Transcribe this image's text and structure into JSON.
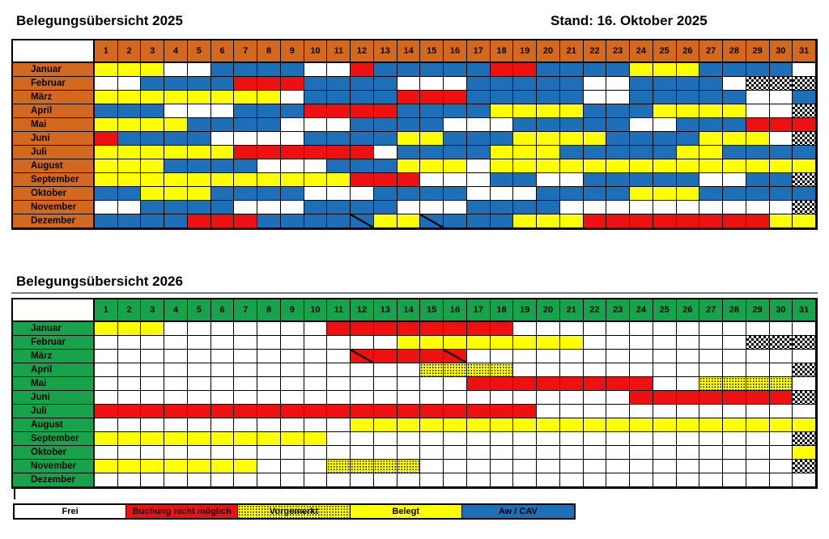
{
  "header": {
    "title_2025": "Belegungsübersicht 2025",
    "stand": "Stand: 16. Oktober 2025",
    "title_2026": "Belegungsübersicht 2026"
  },
  "legend": {
    "items": [
      {
        "label": "Frei",
        "state": "F",
        "color": "#ffffff"
      },
      {
        "label": "Buchung nicht möglich",
        "state": "N",
        "color": "#ee1111"
      },
      {
        "label": "Vorgemerkt",
        "state": "V",
        "color": "#ffff00",
        "pattern": "black-dots"
      },
      {
        "label": "Belegt",
        "state": "B",
        "color": "#ffff00"
      },
      {
        "label": "Aw / CAV",
        "state": "A",
        "color": "#1d6fb8"
      }
    ]
  },
  "chart_data": {
    "type": "heatmap",
    "day_labels": [
      1,
      2,
      3,
      4,
      5,
      6,
      7,
      8,
      9,
      10,
      11,
      12,
      13,
      14,
      15,
      16,
      17,
      18,
      19,
      20,
      21,
      22,
      23,
      24,
      25,
      26,
      27,
      28,
      29,
      30,
      31
    ],
    "state_codes": {
      "F": "Frei (weiß)",
      "N": "Buchung nicht möglich (rot)",
      "V": "Vorgemerkt (gelb gepunktet)",
      "B": "Belegt (gelb)",
      "A": "Aw / CAV (blau)",
      "X": "schraffiert (kein Kalendertag)"
    },
    "diagonal_note": "Zellen mit schwarzer Diagonale von links unten nach rechts oben",
    "years": [
      {
        "year": "2025",
        "header_color": "#d2691e",
        "months": [
          {
            "name": "Januar",
            "states": "BBBFFAAAAFFNAAAAANNAAAABBBAAAAF",
            "diagonal_days": []
          },
          {
            "name": "Februar",
            "states": "FFAAAANNNAAAAFFFAAAAAFFAAAAFXXX",
            "diagonal_days": []
          },
          {
            "name": "März",
            "states": "BBBBBBBBFAAAANNNAAAAAFFAAAAAFFA",
            "diagonal_days": []
          },
          {
            "name": "April",
            "states": "AAAFFFAAANNNNAAAABBBBAAABBBBFFX",
            "diagonal_days": []
          },
          {
            "name": "Mai",
            "states": "BBBBAAAAFFFAAAAFFFAAAAAFFAAANNN",
            "diagonal_days": []
          },
          {
            "name": "Juni",
            "states": "NAAAAFFFFAAAABBAAABBBBAAAABBBFX",
            "diagonal_days": []
          },
          {
            "name": "Juli",
            "states": "BBBBBBNNNNNNFAAAABBBAAAAABBAAAA",
            "diagonal_days": []
          },
          {
            "name": "August",
            "states": "BBBAAAAFFFAAABBBFBBBBBBBBBBBBBB",
            "diagonal_days": []
          },
          {
            "name": "September",
            "states": "BBBBBBBBBBBNNNFFFAAFFAAAAAFFAAX",
            "diagonal_days": []
          },
          {
            "name": "Oktober",
            "states": "AABBBAAAAFFFAAAAFFFAAAABBBAAAAA",
            "diagonal_days": []
          },
          {
            "name": "November",
            "states": "FFAAAAFFFAAAAFFFAAAAFFFFFFFFFFX",
            "diagonal_days": []
          },
          {
            "name": "Dezember",
            "states": "AAAANNNAAAAABBAAAABBBNNNNNNNNBB",
            "diagonal_days": [
              12,
              15
            ]
          }
        ]
      },
      {
        "year": "2026",
        "header_color": "#18a24c",
        "months": [
          {
            "name": "Januar",
            "states": "BBBFFFFFFFNNNNNNNNFFFFFFFFFFFFF",
            "diagonal_days": []
          },
          {
            "name": "Februar",
            "states": "FFFFFFFFFFFFFBBBBBBBBFFFFFFFXXX",
            "diagonal_days": []
          },
          {
            "name": "März",
            "states": "FFFFFFFFFFFNNNNNFFFFFFFFFFFFFFF",
            "diagonal_days": [
              12,
              16
            ]
          },
          {
            "name": "April",
            "states": "FFFFFFFFFFFFFFVVVVFFFFFFFFFFFFX",
            "diagonal_days": []
          },
          {
            "name": "Mai",
            "states": "FFFFFFFFFFFFFFFFNNNNNNNNFFVVVVF",
            "diagonal_days": []
          },
          {
            "name": "Juni",
            "states": "FFFFFFFFFFFFFFFFFFFFFFFNNNNNNNX",
            "diagonal_days": []
          },
          {
            "name": "Juli",
            "states": "NNNNNNNNNNNNNNNNNNNFFFFFFFFFFFF",
            "diagonal_days": []
          },
          {
            "name": "August",
            "states": "FFFFFFFFFFFBBBBBBBBBBBBBBBBBBBB",
            "diagonal_days": []
          },
          {
            "name": "September",
            "states": "BBBBBBBBBBFFFFFFFFFFFFFFFFFFFFX",
            "diagonal_days": []
          },
          {
            "name": "Oktober",
            "states": "FFFFFFFFFFFFFFFFFFFFFFFFFFFFFFB",
            "diagonal_days": []
          },
          {
            "name": "November",
            "states": "BBBBBBBFFFVVVVFFFFFFFFFFFFFFFFX",
            "diagonal_days": []
          },
          {
            "name": "Dezember",
            "states": "FFFFFFFFFFFFFFFFFFFFFFFFFFFFFFF",
            "diagonal_days": []
          }
        ]
      }
    ]
  }
}
